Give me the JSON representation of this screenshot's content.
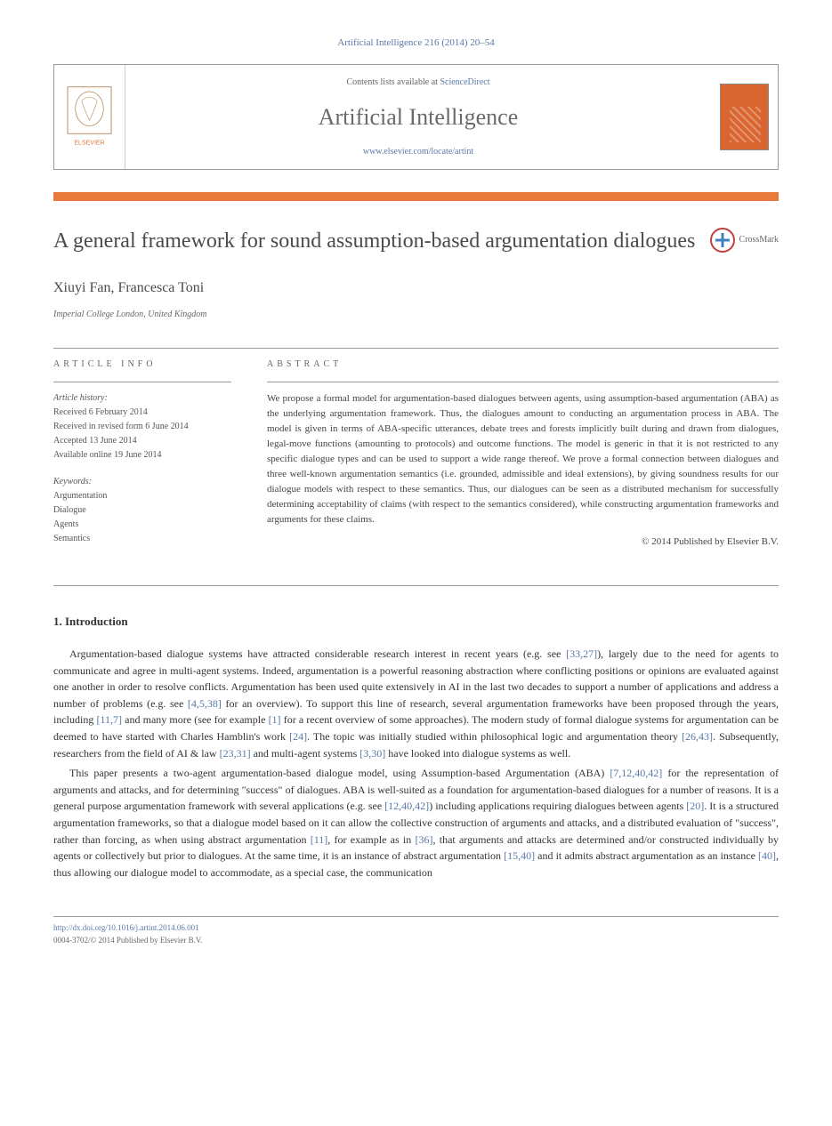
{
  "journal_ref": "Artificial Intelligence 216 (2014) 20–54",
  "header": {
    "contents_prefix": "Contents lists available at ",
    "contents_link": "ScienceDirect",
    "journal_name": "Artificial Intelligence",
    "journal_url": "www.elsevier.com/locate/artint",
    "publisher": "ELSEVIER"
  },
  "crossmark_label": "CrossMark",
  "title": "A general framework for sound assumption-based argumentation dialogues",
  "authors": "Xiuyi Fan, Francesca Toni",
  "affiliation": "Imperial College London, United Kingdom",
  "article_info": {
    "label": "ARTICLE INFO",
    "history_head": "Article history:",
    "received": "Received 6 February 2014",
    "revised": "Received in revised form 6 June 2014",
    "accepted": "Accepted 13 June 2014",
    "online": "Available online 19 June 2014",
    "keywords_head": "Keywords:",
    "keywords": [
      "Argumentation",
      "Dialogue",
      "Agents",
      "Semantics"
    ]
  },
  "abstract": {
    "label": "ABSTRACT",
    "text": "We propose a formal model for argumentation-based dialogues between agents, using assumption-based argumentation (ABA) as the underlying argumentation framework. Thus, the dialogues amount to conducting an argumentation process in ABA. The model is given in terms of ABA-specific utterances, debate trees and forests implicitly built during and drawn from dialogues, legal-move functions (amounting to protocols) and outcome functions. The model is generic in that it is not restricted to any specific dialogue types and can be used to support a wide range thereof. We prove a formal connection between dialogues and three well-known argumentation semantics (i.e. grounded, admissible and ideal extensions), by giving soundness results for our dialogue models with respect to these semantics. Thus, our dialogues can be seen as a distributed mechanism for successfully determining acceptability of claims (with respect to the semantics considered), while constructing argumentation frameworks and arguments for these claims.",
    "copyright": "© 2014 Published by Elsevier B.V."
  },
  "intro": {
    "heading": "1. Introduction",
    "para1_parts": [
      "Argumentation-based dialogue systems have attracted considerable research interest in recent years (e.g. see ",
      "[33,27]",
      "), largely due to the need for agents to communicate and agree in multi-agent systems. Indeed, argumentation is a powerful reasoning abstraction where conflicting positions or opinions are evaluated against one another in order to resolve conflicts. Argumentation has been used quite extensively in AI in the last two decades to support a number of applications and address a number of problems (e.g. see ",
      "[4,5,38]",
      " for an overview). To support this line of research, several argumentation frameworks have been proposed through the years, including ",
      "[11,7]",
      " and many more (see for example ",
      "[1]",
      " for a recent overview of some approaches). The modern study of formal dialogue systems for argumentation can be deemed to have started with Charles Hamblin's work ",
      "[24]",
      ". The topic was initially studied within philosophical logic and argumentation theory ",
      "[26,43]",
      ". Subsequently, researchers from the field of AI & law ",
      "[23,31]",
      " and multi-agent systems ",
      "[3,30]",
      " have looked into dialogue systems as well."
    ],
    "para2_parts": [
      "This paper presents a two-agent argumentation-based dialogue model, using Assumption-based Argumentation (ABA) ",
      "[7,12,40,42]",
      " for the representation of arguments and attacks, and for determining \"success\" of dialogues. ABA is well-suited as a foundation for argumentation-based dialogues for a number of reasons. It is a general purpose argumentation framework with several applications (e.g. see ",
      "[12,40,42]",
      ") including applications requiring dialogues between agents ",
      "[20]",
      ". It is a structured argumentation frameworks, so that a dialogue model based on it can allow the collective construction of arguments and attacks, and a distributed evaluation of \"success\", rather than forcing, as when using abstract argumentation ",
      "[11]",
      ", for example as in ",
      "[36]",
      ", that arguments and attacks are determined and/or constructed individually by agents or collectively but prior to dialogues. At the same time, it is an instance of abstract argumentation ",
      "[15,40]",
      " and it admits abstract argumentation as an instance ",
      "[40]",
      ", thus allowing our dialogue model to accommodate, as a special case, the communication"
    ]
  },
  "footer": {
    "doi": "http://dx.doi.org/10.1016/j.artint.2014.06.001",
    "issn": "0004-3702/© 2014 Published by Elsevier B.V."
  },
  "colors": {
    "link": "#5979a8",
    "accent": "#e87a3e",
    "cover": "#d96530",
    "text": "#333333"
  }
}
